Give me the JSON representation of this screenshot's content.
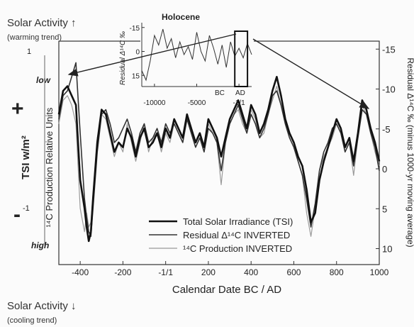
{
  "figure": {
    "solar_top": "Solar Activity ↑",
    "warming": "(warming trend)",
    "solar_bottom": "Solar Activity ↓",
    "cooling": "(cooling trend)",
    "plus_sign": "+",
    "minus_sign": "-",
    "low": "low",
    "high": "high",
    "left_tick_top": "1",
    "left_tick_bottom": "-1",
    "left_label_tsi": "TSI w/m²",
    "left_label_prod": "¹⁴C Production Relative Units",
    "right_label": "Residual Δ¹⁴C ‰ (minus 1000-yr moving average)",
    "x_title": "Calendar Date BC / AD"
  },
  "chart_data": [
    {
      "type": "line",
      "title": "",
      "xlabel": "Calendar Date BC / AD",
      "ylabel": "TSI w/m² / ¹⁴C Production Relative Units",
      "y2label": "Residual Δ¹⁴C ‰ (minus 1000-yr moving average)",
      "xlim": [
        -500,
        1000
      ],
      "ylim_left": [
        -1.3,
        1.08
      ],
      "ylim_right_inverted": [
        12,
        -16
      ],
      "x_ticks": [
        "-400",
        "-200",
        "-1/1",
        "200",
        "400",
        "600",
        "800",
        "1000"
      ],
      "x_tick_values": [
        -400,
        -200,
        0,
        200,
        400,
        600,
        800,
        1000
      ],
      "y2_ticks": [
        "-15",
        "-10",
        "-5",
        "0",
        "5",
        "10"
      ],
      "y2_tick_values": [
        -15,
        -10,
        -5,
        0,
        5,
        10
      ],
      "legend": {
        "position": "bottom-left"
      },
      "series": [
        {
          "name": "Total Solar Irradiance (TSI)",
          "color": "#111111",
          "x": [
            -500,
            -480,
            -460,
            -440,
            -420,
            -400,
            -380,
            -370,
            -360,
            -350,
            -340,
            -320,
            -300,
            -280,
            -260,
            -240,
            -220,
            -200,
            -180,
            -160,
            -140,
            -120,
            -100,
            -80,
            -60,
            -40,
            -20,
            0,
            20,
            40,
            60,
            80,
            100,
            120,
            140,
            160,
            180,
            200,
            220,
            240,
            260,
            280,
            300,
            320,
            340,
            360,
            380,
            400,
            420,
            440,
            460,
            480,
            500,
            520,
            540,
            560,
            580,
            600,
            620,
            640,
            660,
            680,
            700,
            720,
            740,
            760,
            780,
            800,
            820,
            840,
            860,
            880,
            900,
            920,
            940,
            960,
            980,
            1000
          ],
          "values": [
            0.3,
            0.55,
            0.6,
            0.5,
            0.4,
            -0.4,
            -0.7,
            -0.9,
            -1.05,
            -0.95,
            -0.6,
            0.0,
            0.35,
            0.3,
            0.1,
            -0.1,
            0.0,
            -0.05,
            0.15,
            0.05,
            -0.15,
            0.05,
            0.15,
            -0.05,
            0.0,
            0.1,
            -0.05,
            0.15,
            0.05,
            0.25,
            0.15,
            0.05,
            0.3,
            0.15,
            0.0,
            0.1,
            -0.05,
            0.25,
            0.15,
            0.05,
            -0.15,
            0.05,
            0.25,
            0.35,
            0.45,
            0.3,
            0.15,
            0.4,
            0.3,
            0.1,
            0.2,
            0.35,
            0.55,
            0.7,
            0.5,
            0.25,
            0.1,
            0.0,
            -0.15,
            -0.25,
            -0.5,
            -0.85,
            -0.75,
            -0.4,
            -0.2,
            -0.05,
            0.1,
            0.25,
            0.15,
            -0.05,
            0.05,
            -0.2,
            0.1,
            0.45,
            0.35,
            0.15,
            0.0,
            -0.2
          ]
        },
        {
          "name": "Residual Δ¹⁴C INVERTED",
          "color": "#333333",
          "x": [
            -500,
            -480,
            -460,
            -440,
            -420,
            -400,
            -380,
            -370,
            -360,
            -350,
            -340,
            -320,
            -300,
            -280,
            -260,
            -240,
            -220,
            -200,
            -180,
            -160,
            -140,
            -120,
            -100,
            -80,
            -60,
            -40,
            -20,
            0,
            20,
            40,
            60,
            80,
            100,
            120,
            140,
            160,
            180,
            200,
            220,
            240,
            260,
            280,
            300,
            320,
            340,
            360,
            380,
            400,
            420,
            440,
            460,
            480,
            500,
            520,
            540,
            560,
            580,
            600,
            620,
            640,
            660,
            680,
            700,
            720,
            740,
            760,
            780,
            800,
            820,
            840,
            860,
            880,
            900,
            920,
            940,
            960,
            980,
            1000
          ],
          "values": [
            0.25,
            0.5,
            0.55,
            0.7,
            0.85,
            0.1,
            -0.6,
            -0.8,
            -0.95,
            -1.0,
            -0.7,
            -0.1,
            0.3,
            0.35,
            0.2,
            0.0,
            0.05,
            0.15,
            0.25,
            0.1,
            -0.1,
            0.1,
            0.2,
            0.0,
            0.05,
            0.15,
            0.0,
            0.2,
            0.1,
            0.2,
            0.1,
            0.0,
            0.25,
            0.1,
            -0.05,
            0.05,
            -0.1,
            0.15,
            0.1,
            0.0,
            -0.3,
            0.0,
            0.2,
            0.3,
            0.4,
            0.25,
            0.1,
            0.3,
            0.2,
            0.05,
            0.15,
            0.3,
            0.5,
            0.55,
            0.4,
            0.2,
            0.05,
            -0.05,
            -0.2,
            -0.35,
            -0.6,
            -0.9,
            -0.65,
            -0.3,
            -0.1,
            0.0,
            0.15,
            0.2,
            0.1,
            -0.1,
            0.0,
            -0.25,
            0.05,
            0.35,
            0.3,
            0.1,
            -0.05,
            -0.3
          ]
        },
        {
          "name": "¹⁴C Production INVERTED",
          "color": "#9a9a9a",
          "x": [
            -500,
            -480,
            -460,
            -440,
            -420,
            -400,
            -380,
            -370,
            -360,
            -350,
            -340,
            -320,
            -300,
            -280,
            -260,
            -240,
            -220,
            -200,
            -180,
            -160,
            -140,
            -120,
            -100,
            -80,
            -60,
            -40,
            -20,
            0,
            20,
            40,
            60,
            80,
            100,
            120,
            140,
            160,
            180,
            200,
            220,
            240,
            260,
            280,
            300,
            320,
            340,
            360,
            380,
            400,
            420,
            440,
            460,
            480,
            500,
            520,
            540,
            560,
            580,
            600,
            620,
            640,
            660,
            680,
            700,
            720,
            740,
            760,
            780,
            800,
            820,
            840,
            860,
            880,
            900,
            920,
            940,
            960,
            980,
            1000
          ],
          "values": [
            0.2,
            0.45,
            0.5,
            0.4,
            0.2,
            -0.7,
            -0.95,
            -0.75,
            -0.9,
            -0.85,
            -0.55,
            0.05,
            0.3,
            0.25,
            0.05,
            -0.15,
            0.0,
            -0.1,
            0.2,
            0.0,
            -0.2,
            0.0,
            0.2,
            -0.1,
            0.05,
            0.1,
            -0.1,
            0.1,
            0.0,
            0.2,
            0.1,
            0.0,
            0.25,
            0.1,
            -0.05,
            0.05,
            -0.1,
            0.2,
            0.1,
            0.0,
            -0.45,
            0.0,
            0.2,
            0.3,
            0.35,
            0.2,
            0.1,
            0.35,
            0.25,
            0.05,
            0.1,
            0.3,
            0.45,
            0.6,
            0.4,
            0.2,
            0.05,
            -0.05,
            -0.2,
            -0.35,
            -0.75,
            -1.0,
            -0.7,
            -0.3,
            -0.15,
            -0.05,
            0.05,
            0.2,
            0.1,
            -0.1,
            0.0,
            -0.35,
            0.05,
            0.4,
            0.3,
            0.1,
            -0.1,
            -0.25
          ]
        }
      ]
    },
    {
      "type": "line",
      "title": "Holocene",
      "xlabel": "",
      "ylabel": "Residual Δ¹⁴C ‰",
      "xlim": [
        -11500,
        1500
      ],
      "ylim_inverted": [
        22,
        -18
      ],
      "x_ticks": [
        "-10000",
        "-5000",
        "-1/1"
      ],
      "x_tick_values": [
        -10000,
        -5000,
        0
      ],
      "y_ticks": [
        "-15",
        "0",
        "15"
      ],
      "y_tick_values": [
        -15,
        0,
        15
      ],
      "annotations": [
        "BC",
        "AD"
      ],
      "highlight_range": [
        -500,
        1000
      ],
      "series": [
        {
          "color": "#333333",
          "x": [
            -11500,
            -11000,
            -10500,
            -10000,
            -9500,
            -9000,
            -8500,
            -8000,
            -7500,
            -7000,
            -6500,
            -6000,
            -5500,
            -5000,
            -4500,
            -4000,
            -3500,
            -3000,
            -2500,
            -2000,
            -1500,
            -1000,
            -500,
            0,
            500,
            1000,
            1500
          ],
          "values": [
            12,
            18,
            6,
            -10,
            -4,
            -14,
            -2,
            -8,
            4,
            -6,
            2,
            -3,
            5,
            -12,
            0,
            6,
            -10,
            -2,
            8,
            -4,
            10,
            -6,
            3,
            -2,
            4,
            -5,
            2
          ]
        }
      ]
    }
  ]
}
